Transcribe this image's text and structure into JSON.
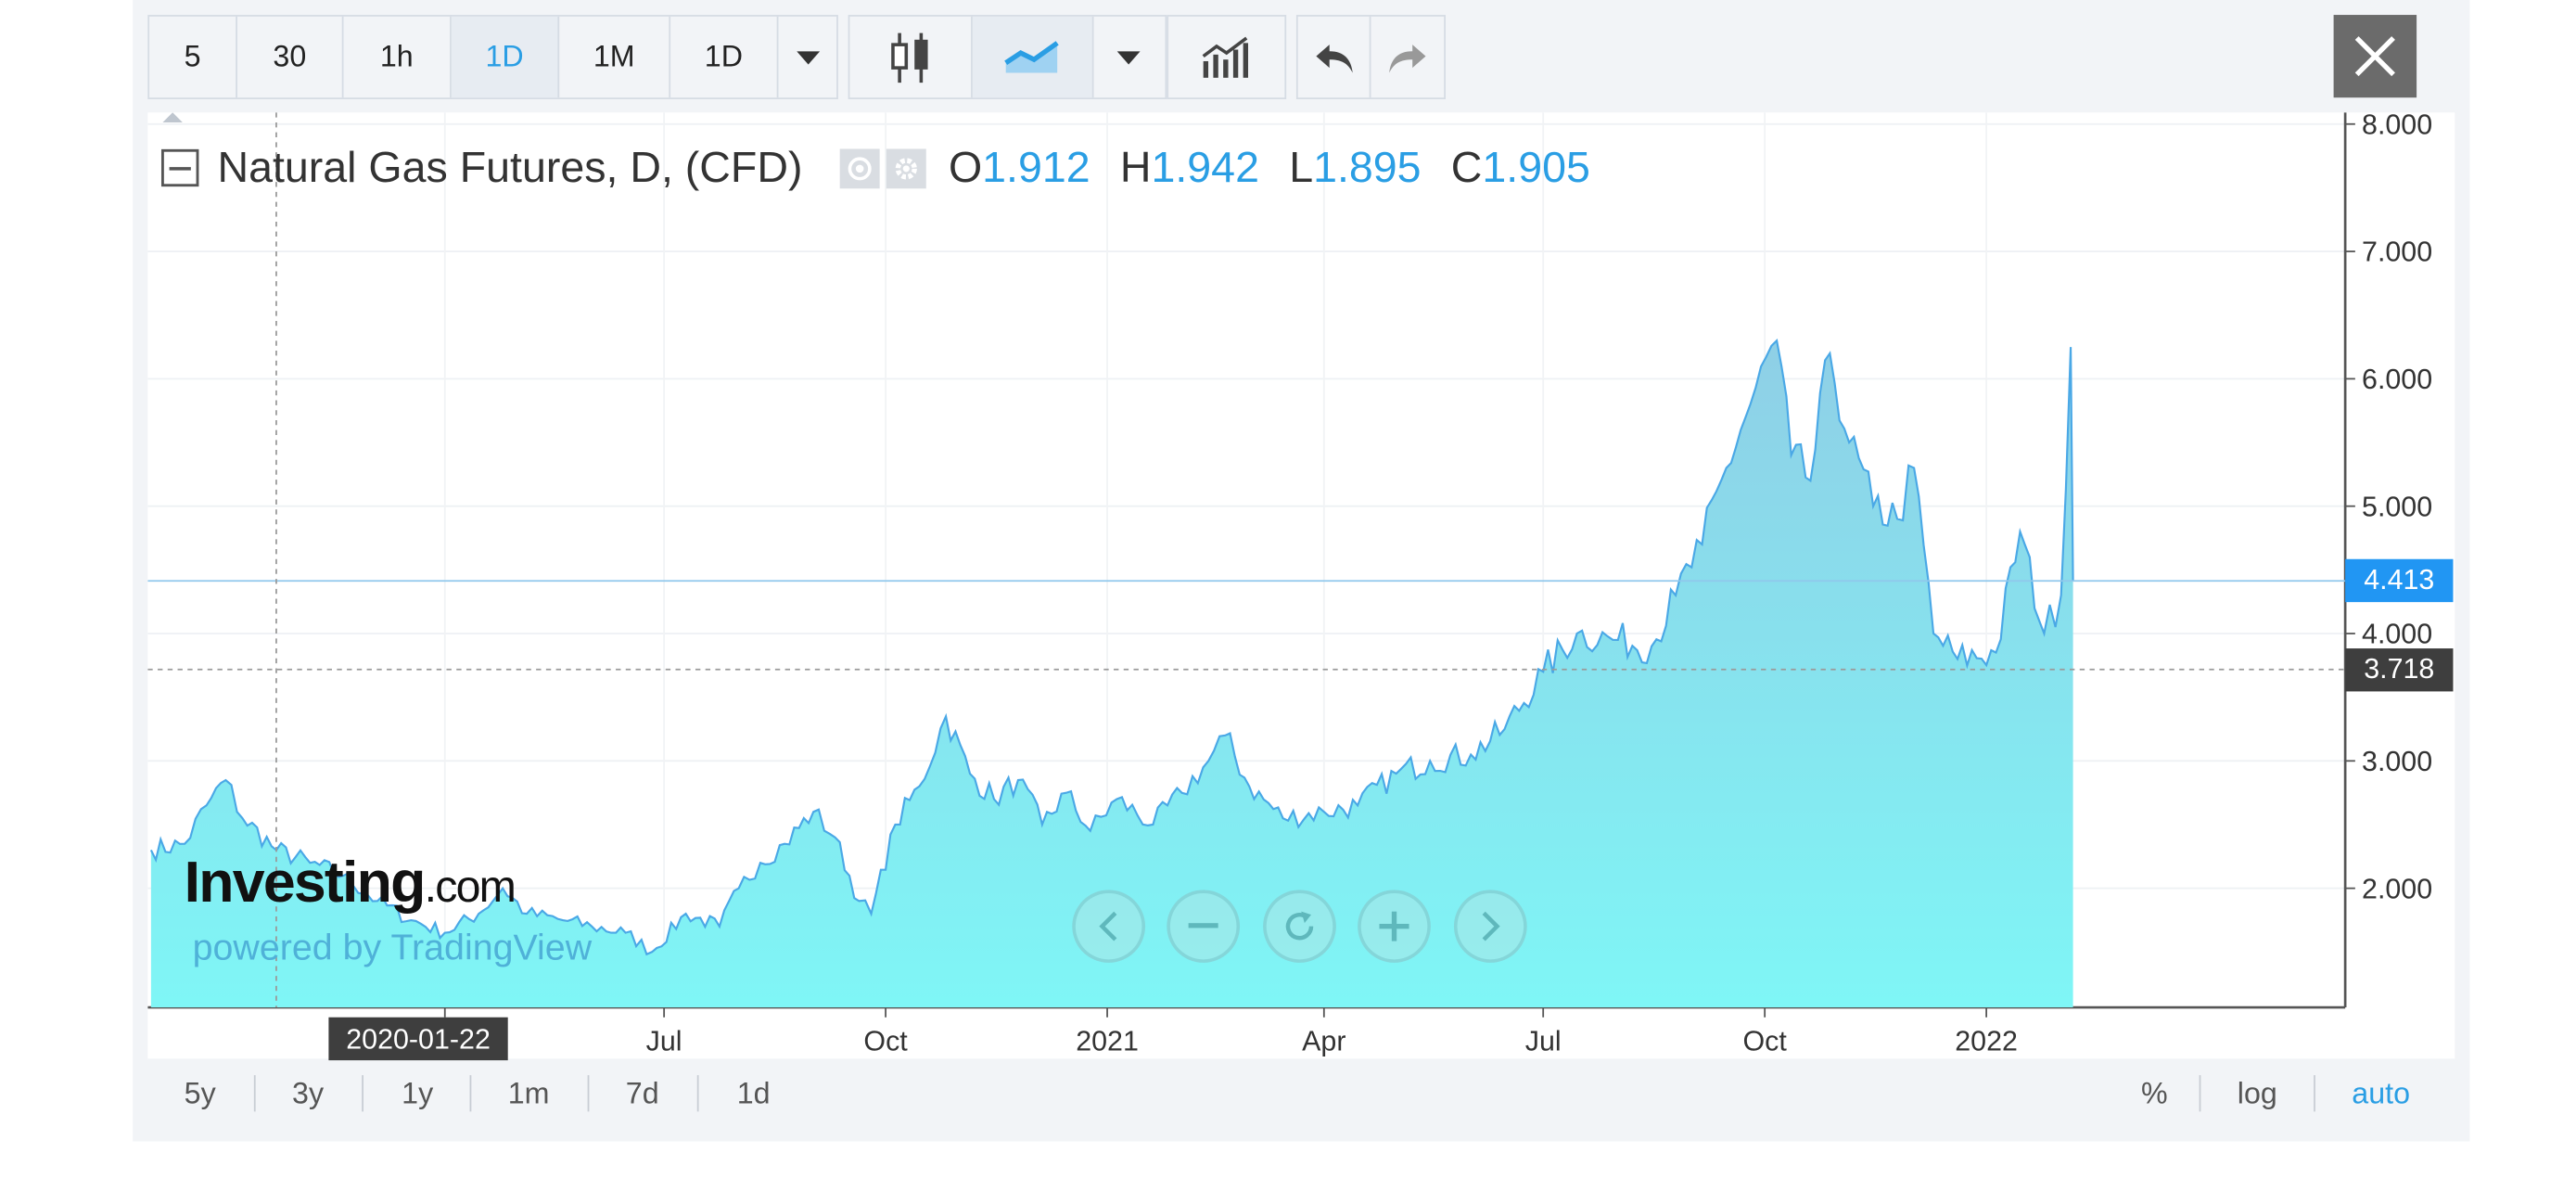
{
  "toolbar": {
    "intervals": [
      "5",
      "30",
      "1h",
      "1D",
      "1M",
      "1D"
    ],
    "active_interval": "1D"
  },
  "legend": {
    "title": "Natural Gas Futures, D, (CFD)",
    "open_label": "O",
    "open": "1.912",
    "high_label": "H",
    "high": "1.942",
    "low_label": "L",
    "low": "1.895",
    "close_label": "C",
    "close": "1.905"
  },
  "crosshair": {
    "date": "2020-01-22",
    "price": "3.718"
  },
  "last_price": "4.413",
  "watermark": {
    "brand": "Investing",
    "brand_suffix": ".com",
    "powered": "powered by TradingView"
  },
  "ranges": [
    "5y",
    "3y",
    "1y",
    "1m",
    "7d",
    "1d"
  ],
  "scale_options": [
    "%",
    "log",
    "auto"
  ],
  "active_scale": "auto",
  "colors": {
    "line": "#4aa8e6",
    "fill_top": "#8fcfe6",
    "fill_bottom": "#7ff6f6",
    "accent": "#2a9ee4",
    "crosshair_label": "#3e3e3e"
  },
  "chart_data": {
    "type": "area",
    "x_ticks": [
      "Apr",
      "Jul",
      "Oct",
      "2021",
      "Apr",
      "Jul",
      "Oct",
      "2022"
    ],
    "y_ticks": [
      "2.000",
      "3.000",
      "4.000",
      "5.000",
      "6.000",
      "7.000",
      "8.000"
    ],
    "ylim": [
      1.0,
      8.0
    ],
    "xlim": [
      "2019-12-01",
      "2022-05-30"
    ],
    "grid": true,
    "series": [
      {
        "points": [
          [
            "2019-12-01",
            2.3
          ],
          [
            "2019-12-15",
            2.35
          ],
          [
            "2019-12-24",
            2.65
          ],
          [
            "2020-01-01",
            2.85
          ],
          [
            "2020-01-08",
            2.55
          ],
          [
            "2020-01-22",
            2.3
          ],
          [
            "2020-02-05",
            2.2
          ],
          [
            "2020-02-19",
            2.1
          ],
          [
            "2020-03-04",
            1.9
          ],
          [
            "2020-03-18",
            1.75
          ],
          [
            "2020-04-01",
            1.65
          ],
          [
            "2020-04-15",
            1.8
          ],
          [
            "2020-04-25",
            2.0
          ],
          [
            "2020-05-05",
            1.8
          ],
          [
            "2020-05-20",
            1.75
          ],
          [
            "2020-06-01",
            1.7
          ],
          [
            "2020-06-15",
            1.65
          ],
          [
            "2020-06-26",
            1.5
          ],
          [
            "2020-07-10",
            1.8
          ],
          [
            "2020-07-24",
            1.7
          ],
          [
            "2020-08-01",
            2.0
          ],
          [
            "2020-08-10",
            2.2
          ],
          [
            "2020-08-20",
            2.35
          ],
          [
            "2020-09-01",
            2.6
          ],
          [
            "2020-09-10",
            2.4
          ],
          [
            "2020-09-20",
            1.9
          ],
          [
            "2020-09-25",
            1.8
          ],
          [
            "2020-10-05",
            2.5
          ],
          [
            "2020-10-15",
            2.8
          ],
          [
            "2020-10-26",
            3.35
          ],
          [
            "2020-11-05",
            2.9
          ],
          [
            "2020-11-15",
            2.7
          ],
          [
            "2020-11-25",
            2.85
          ],
          [
            "2020-12-05",
            2.5
          ],
          [
            "2020-12-15",
            2.75
          ],
          [
            "2020-12-25",
            2.45
          ],
          [
            "2021-01-05",
            2.7
          ],
          [
            "2021-01-20",
            2.5
          ],
          [
            "2021-02-01",
            2.75
          ],
          [
            "2021-02-12",
            3.0
          ],
          [
            "2021-02-19",
            3.2
          ],
          [
            "2021-03-01",
            2.8
          ],
          [
            "2021-03-15",
            2.55
          ],
          [
            "2021-04-01",
            2.6
          ],
          [
            "2021-04-15",
            2.65
          ],
          [
            "2021-05-01",
            2.9
          ],
          [
            "2021-05-15",
            3.0
          ],
          [
            "2021-06-01",
            3.05
          ],
          [
            "2021-06-15",
            3.25
          ],
          [
            "2021-07-01",
            3.7
          ],
          [
            "2021-07-15",
            4.0
          ],
          [
            "2021-08-01",
            3.95
          ],
          [
            "2021-08-15",
            3.9
          ],
          [
            "2021-08-25",
            4.3
          ],
          [
            "2021-09-05",
            4.7
          ],
          [
            "2021-09-15",
            5.3
          ],
          [
            "2021-09-25",
            5.8
          ],
          [
            "2021-10-06",
            6.3
          ],
          [
            "2021-10-12",
            5.4
          ],
          [
            "2021-10-20",
            5.2
          ],
          [
            "2021-10-28",
            6.2
          ],
          [
            "2021-11-05",
            5.5
          ],
          [
            "2021-11-15",
            5.0
          ],
          [
            "2021-11-25",
            4.9
          ],
          [
            "2021-12-02",
            5.3
          ],
          [
            "2021-12-10",
            4.0
          ],
          [
            "2021-12-20",
            3.8
          ],
          [
            "2022-01-05",
            3.85
          ],
          [
            "2022-01-15",
            4.8
          ],
          [
            "2022-01-25",
            4.0
          ],
          [
            "2022-02-01",
            4.3
          ],
          [
            "2022-02-05",
            6.25
          ],
          [
            "2022-02-06",
            4.41
          ]
        ]
      }
    ]
  }
}
